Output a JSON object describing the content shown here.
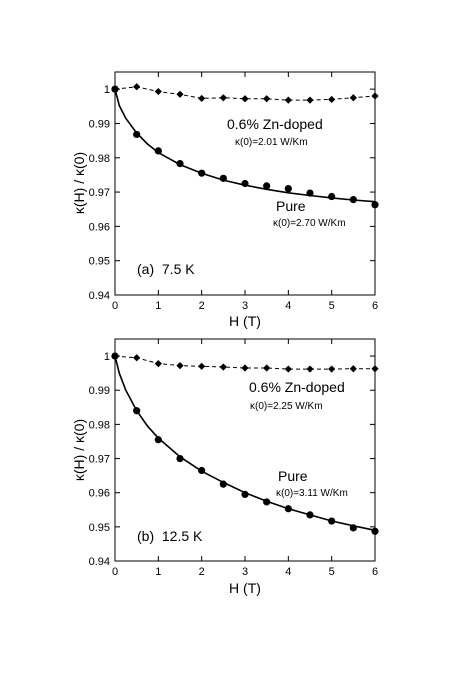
{
  "chart_data": [
    {
      "type": "scatter",
      "xlabel": "H (T)",
      "ylabel": "κ(H) / κ(0)",
      "xlim": [
        0,
        6
      ],
      "ylim": [
        0.94,
        1.005
      ],
      "xticks": [
        0,
        1,
        2,
        3,
        4,
        5,
        6
      ],
      "yticks": [
        0.94,
        0.95,
        0.96,
        0.97,
        0.98,
        0.99,
        1
      ],
      "panel_label": "(a)  7.5 K",
      "annotations": {
        "zn_title": "0.6% Zn-doped",
        "zn_kappa": "κ(0)=2.01 W/Km",
        "pure_title": "Pure",
        "pure_kappa": "κ(0)=2.70 W/Km"
      },
      "series": [
        {
          "name": "0.6% Zn-doped",
          "marker": "diamond",
          "line": "dashed",
          "x": [
            0,
            0.5,
            1.0,
            1.5,
            2.0,
            2.5,
            3.0,
            3.5,
            4.0,
            4.5,
            5.0,
            5.5,
            6.0
          ],
          "y": [
            1.0,
            1.0007,
            0.9993,
            0.9985,
            0.9973,
            0.9975,
            0.9972,
            0.9972,
            0.9968,
            0.9968,
            0.997,
            0.9975,
            0.998
          ]
        },
        {
          "name": "Pure",
          "marker": "circle",
          "line": "solid-fit",
          "x": [
            0,
            0.5,
            1.0,
            1.5,
            2.0,
            2.5,
            3.0,
            3.5,
            4.0,
            4.5,
            5.0,
            5.5,
            6.0
          ],
          "y": [
            1.0,
            0.9868,
            0.982,
            0.9783,
            0.9755,
            0.974,
            0.9725,
            0.9718,
            0.971,
            0.9697,
            0.9687,
            0.9678,
            0.9663
          ],
          "fit": {
            "x": [
              0,
              0.1,
              0.25,
              0.5,
              0.75,
              1.0,
              1.5,
              2.0,
              2.5,
              3.0,
              3.5,
              4.0,
              4.5,
              5.0,
              5.5,
              6.0
            ],
            "y": [
              1.0,
              0.9952,
              0.9915,
              0.9872,
              0.984,
              0.9815,
              0.978,
              0.9755,
              0.9735,
              0.972,
              0.9708,
              0.9698,
              0.969,
              0.9683,
              0.9677,
              0.9672
            ]
          }
        }
      ]
    },
    {
      "type": "scatter",
      "xlabel": "H (T)",
      "ylabel": "κ(H) / κ(0)",
      "xlim": [
        0,
        6
      ],
      "ylim": [
        0.94,
        1.005
      ],
      "xticks": [
        0,
        1,
        2,
        3,
        4,
        5,
        6
      ],
      "yticks": [
        0.94,
        0.95,
        0.96,
        0.97,
        0.98,
        0.99,
        1
      ],
      "panel_label": "(b)  12.5 K",
      "annotations": {
        "zn_title": "0.6% Zn-doped",
        "zn_kappa": "κ(0)=2.25 W/Km",
        "pure_title": "Pure",
        "pure_kappa": "κ(0)=3.11 W/Km"
      },
      "series": [
        {
          "name": "0.6% Zn-doped",
          "marker": "diamond",
          "line": "dashed",
          "x": [
            0,
            0.5,
            1.0,
            1.5,
            2.0,
            2.5,
            3.0,
            3.5,
            4.0,
            4.5,
            5.0,
            5.5,
            6.0
          ],
          "y": [
            1.0,
            0.9995,
            0.9978,
            0.9972,
            0.997,
            0.9968,
            0.9965,
            0.9965,
            0.9962,
            0.9962,
            0.9962,
            0.9963,
            0.9963
          ]
        },
        {
          "name": "Pure",
          "marker": "circle",
          "line": "solid-fit",
          "x": [
            0,
            0.5,
            1.0,
            1.5,
            2.0,
            2.5,
            3.0,
            3.5,
            4.0,
            4.5,
            5.0,
            5.5,
            6.0
          ],
          "y": [
            1.0,
            0.984,
            0.9755,
            0.97,
            0.9665,
            0.9625,
            0.9595,
            0.9573,
            0.9553,
            0.9535,
            0.9517,
            0.9497,
            0.9487
          ],
          "fit": {
            "x": [
              0,
              0.1,
              0.25,
              0.5,
              0.75,
              1.0,
              1.5,
              2.0,
              2.5,
              3.0,
              3.5,
              4.0,
              4.5,
              5.0,
              5.5,
              6.0
            ],
            "y": [
              1.0,
              0.995,
              0.99,
              0.984,
              0.9795,
              0.976,
              0.9705,
              0.9663,
              0.963,
              0.96,
              0.9575,
              0.9553,
              0.9535,
              0.9517,
              0.9503,
              0.949
            ]
          }
        }
      ]
    }
  ]
}
